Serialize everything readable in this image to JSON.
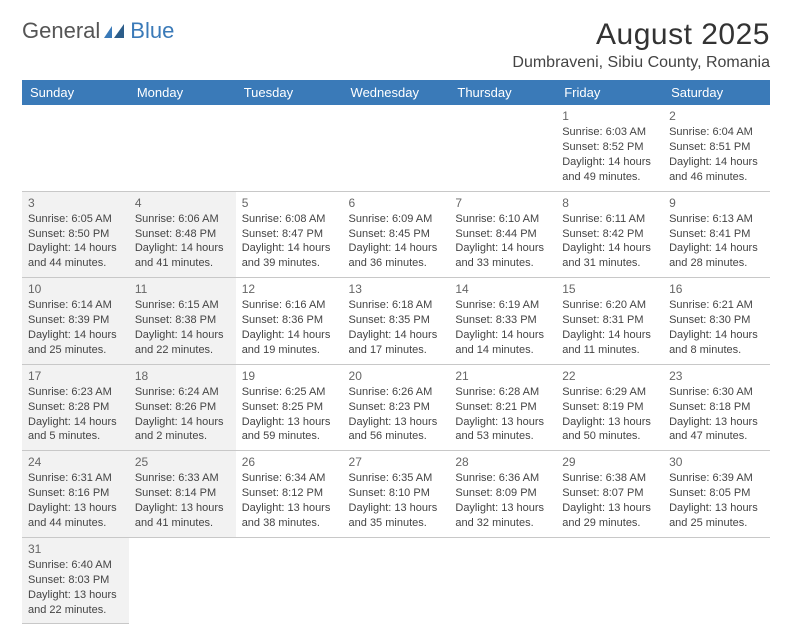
{
  "logo": {
    "word1": "General",
    "word2": "Blue"
  },
  "title": "August 2025",
  "location": "Dumbraveni, Sibiu County, Romania",
  "colors": {
    "header_bg": "#3a7ab8",
    "header_text": "#ffffff",
    "shaded_bg": "#f2f2f2",
    "grid_line": "#c8c8c8",
    "body_text": "#444444",
    "logo_gray": "#555555",
    "logo_blue": "#3a7ab8"
  },
  "dayNames": [
    "Sunday",
    "Monday",
    "Tuesday",
    "Wednesday",
    "Thursday",
    "Friday",
    "Saturday"
  ],
  "weeks": [
    [
      null,
      null,
      null,
      null,
      null,
      {
        "n": "1",
        "sr": "Sunrise: 6:03 AM",
        "ss": "Sunset: 8:52 PM",
        "d1": "Daylight: 14 hours",
        "d2": "and 49 minutes."
      },
      {
        "n": "2",
        "sr": "Sunrise: 6:04 AM",
        "ss": "Sunset: 8:51 PM",
        "d1": "Daylight: 14 hours",
        "d2": "and 46 minutes."
      }
    ],
    [
      {
        "n": "3",
        "sr": "Sunrise: 6:05 AM",
        "ss": "Sunset: 8:50 PM",
        "d1": "Daylight: 14 hours",
        "d2": "and 44 minutes.",
        "shaded": true
      },
      {
        "n": "4",
        "sr": "Sunrise: 6:06 AM",
        "ss": "Sunset: 8:48 PM",
        "d1": "Daylight: 14 hours",
        "d2": "and 41 minutes.",
        "shaded": true
      },
      {
        "n": "5",
        "sr": "Sunrise: 6:08 AM",
        "ss": "Sunset: 8:47 PM",
        "d1": "Daylight: 14 hours",
        "d2": "and 39 minutes."
      },
      {
        "n": "6",
        "sr": "Sunrise: 6:09 AM",
        "ss": "Sunset: 8:45 PM",
        "d1": "Daylight: 14 hours",
        "d2": "and 36 minutes."
      },
      {
        "n": "7",
        "sr": "Sunrise: 6:10 AM",
        "ss": "Sunset: 8:44 PM",
        "d1": "Daylight: 14 hours",
        "d2": "and 33 minutes."
      },
      {
        "n": "8",
        "sr": "Sunrise: 6:11 AM",
        "ss": "Sunset: 8:42 PM",
        "d1": "Daylight: 14 hours",
        "d2": "and 31 minutes."
      },
      {
        "n": "9",
        "sr": "Sunrise: 6:13 AM",
        "ss": "Sunset: 8:41 PM",
        "d1": "Daylight: 14 hours",
        "d2": "and 28 minutes."
      }
    ],
    [
      {
        "n": "10",
        "sr": "Sunrise: 6:14 AM",
        "ss": "Sunset: 8:39 PM",
        "d1": "Daylight: 14 hours",
        "d2": "and 25 minutes.",
        "shaded": true
      },
      {
        "n": "11",
        "sr": "Sunrise: 6:15 AM",
        "ss": "Sunset: 8:38 PM",
        "d1": "Daylight: 14 hours",
        "d2": "and 22 minutes.",
        "shaded": true
      },
      {
        "n": "12",
        "sr": "Sunrise: 6:16 AM",
        "ss": "Sunset: 8:36 PM",
        "d1": "Daylight: 14 hours",
        "d2": "and 19 minutes."
      },
      {
        "n": "13",
        "sr": "Sunrise: 6:18 AM",
        "ss": "Sunset: 8:35 PM",
        "d1": "Daylight: 14 hours",
        "d2": "and 17 minutes."
      },
      {
        "n": "14",
        "sr": "Sunrise: 6:19 AM",
        "ss": "Sunset: 8:33 PM",
        "d1": "Daylight: 14 hours",
        "d2": "and 14 minutes."
      },
      {
        "n": "15",
        "sr": "Sunrise: 6:20 AM",
        "ss": "Sunset: 8:31 PM",
        "d1": "Daylight: 14 hours",
        "d2": "and 11 minutes."
      },
      {
        "n": "16",
        "sr": "Sunrise: 6:21 AM",
        "ss": "Sunset: 8:30 PM",
        "d1": "Daylight: 14 hours",
        "d2": "and 8 minutes."
      }
    ],
    [
      {
        "n": "17",
        "sr": "Sunrise: 6:23 AM",
        "ss": "Sunset: 8:28 PM",
        "d1": "Daylight: 14 hours",
        "d2": "and 5 minutes.",
        "shaded": true
      },
      {
        "n": "18",
        "sr": "Sunrise: 6:24 AM",
        "ss": "Sunset: 8:26 PM",
        "d1": "Daylight: 14 hours",
        "d2": "and 2 minutes.",
        "shaded": true
      },
      {
        "n": "19",
        "sr": "Sunrise: 6:25 AM",
        "ss": "Sunset: 8:25 PM",
        "d1": "Daylight: 13 hours",
        "d2": "and 59 minutes."
      },
      {
        "n": "20",
        "sr": "Sunrise: 6:26 AM",
        "ss": "Sunset: 8:23 PM",
        "d1": "Daylight: 13 hours",
        "d2": "and 56 minutes."
      },
      {
        "n": "21",
        "sr": "Sunrise: 6:28 AM",
        "ss": "Sunset: 8:21 PM",
        "d1": "Daylight: 13 hours",
        "d2": "and 53 minutes."
      },
      {
        "n": "22",
        "sr": "Sunrise: 6:29 AM",
        "ss": "Sunset: 8:19 PM",
        "d1": "Daylight: 13 hours",
        "d2": "and 50 minutes."
      },
      {
        "n": "23",
        "sr": "Sunrise: 6:30 AM",
        "ss": "Sunset: 8:18 PM",
        "d1": "Daylight: 13 hours",
        "d2": "and 47 minutes."
      }
    ],
    [
      {
        "n": "24",
        "sr": "Sunrise: 6:31 AM",
        "ss": "Sunset: 8:16 PM",
        "d1": "Daylight: 13 hours",
        "d2": "and 44 minutes.",
        "shaded": true
      },
      {
        "n": "25",
        "sr": "Sunrise: 6:33 AM",
        "ss": "Sunset: 8:14 PM",
        "d1": "Daylight: 13 hours",
        "d2": "and 41 minutes.",
        "shaded": true
      },
      {
        "n": "26",
        "sr": "Sunrise: 6:34 AM",
        "ss": "Sunset: 8:12 PM",
        "d1": "Daylight: 13 hours",
        "d2": "and 38 minutes."
      },
      {
        "n": "27",
        "sr": "Sunrise: 6:35 AM",
        "ss": "Sunset: 8:10 PM",
        "d1": "Daylight: 13 hours",
        "d2": "and 35 minutes."
      },
      {
        "n": "28",
        "sr": "Sunrise: 6:36 AM",
        "ss": "Sunset: 8:09 PM",
        "d1": "Daylight: 13 hours",
        "d2": "and 32 minutes."
      },
      {
        "n": "29",
        "sr": "Sunrise: 6:38 AM",
        "ss": "Sunset: 8:07 PM",
        "d1": "Daylight: 13 hours",
        "d2": "and 29 minutes."
      },
      {
        "n": "30",
        "sr": "Sunrise: 6:39 AM",
        "ss": "Sunset: 8:05 PM",
        "d1": "Daylight: 13 hours",
        "d2": "and 25 minutes."
      }
    ],
    [
      {
        "n": "31",
        "sr": "Sunrise: 6:40 AM",
        "ss": "Sunset: 8:03 PM",
        "d1": "Daylight: 13 hours",
        "d2": "and 22 minutes.",
        "shaded": true
      },
      null,
      null,
      null,
      null,
      null,
      null
    ]
  ]
}
